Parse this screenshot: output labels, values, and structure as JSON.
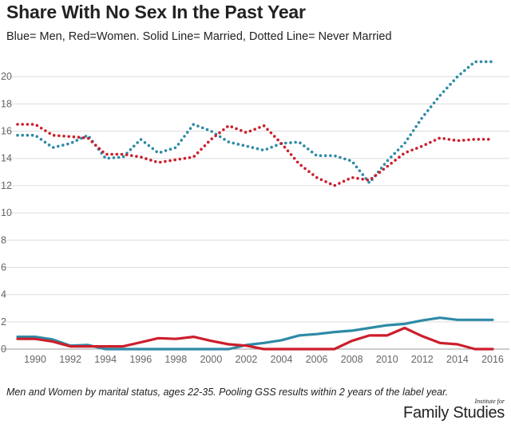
{
  "title": "Share With No Sex In the Past Year",
  "subtitle": "Blue= Men, Red=Women. Solid Line= Married, Dotted Line= Never Married",
  "note": "Men and Women by marital status, ages 22-35. Pooling GSS results within 2 years of the label year.",
  "logo": {
    "small": "Institute for",
    "big": "Family Studies"
  },
  "colors": {
    "men": "#2e8aa6",
    "women": "#cc1e2c",
    "grid": "#dddddd",
    "tick": "#666666"
  },
  "chart_data": {
    "type": "line",
    "xlim": [
      1989,
      2016.5
    ],
    "ylim": [
      0,
      22
    ],
    "x_ticks": [
      1990,
      1992,
      1994,
      1996,
      1998,
      2000,
      2002,
      2004,
      2006,
      2008,
      2010,
      2012,
      2014,
      2016
    ],
    "y_ticks": [
      0,
      2,
      4,
      6,
      8,
      10,
      12,
      14,
      16,
      18,
      20
    ],
    "grid": "horizontal",
    "legend": "none",
    "series": [
      {
        "color": "men",
        "style": "dotted",
        "points": [
          [
            1989,
            15.7
          ],
          [
            1990,
            15.7
          ],
          [
            1991,
            14.8
          ],
          [
            1992,
            15.1
          ],
          [
            1993,
            15.7
          ],
          [
            1994,
            14.0
          ],
          [
            1995,
            14.1
          ],
          [
            1996,
            15.4
          ],
          [
            1997,
            14.4
          ],
          [
            1998,
            14.8
          ],
          [
            1999,
            16.5
          ],
          [
            2000,
            16.0
          ],
          [
            2001,
            15.2
          ],
          [
            2002,
            14.9
          ],
          [
            2003,
            14.6
          ],
          [
            2004,
            15.1
          ],
          [
            2005,
            15.2
          ],
          [
            2006,
            14.2
          ],
          [
            2007,
            14.2
          ],
          [
            2008,
            13.8
          ],
          [
            2009,
            12.2
          ],
          [
            2010,
            13.8
          ],
          [
            2011,
            15.1
          ],
          [
            2012,
            17.0
          ],
          [
            2013,
            18.6
          ],
          [
            2014,
            20.0
          ],
          [
            2015,
            21.1
          ],
          [
            2016,
            21.1
          ]
        ]
      },
      {
        "color": "women",
        "style": "dotted",
        "points": [
          [
            1989,
            16.5
          ],
          [
            1990,
            16.5
          ],
          [
            1991,
            15.7
          ],
          [
            1992,
            15.6
          ],
          [
            1993,
            15.5
          ],
          [
            1994,
            14.3
          ],
          [
            1995,
            14.3
          ],
          [
            1996,
            14.1
          ],
          [
            1997,
            13.7
          ],
          [
            1998,
            13.9
          ],
          [
            1999,
            14.1
          ],
          [
            2000,
            15.4
          ],
          [
            2001,
            16.4
          ],
          [
            2002,
            15.9
          ],
          [
            2003,
            16.4
          ],
          [
            2004,
            15.1
          ],
          [
            2005,
            13.6
          ],
          [
            2006,
            12.6
          ],
          [
            2007,
            12.0
          ],
          [
            2008,
            12.6
          ],
          [
            2009,
            12.4
          ],
          [
            2010,
            13.4
          ],
          [
            2011,
            14.4
          ],
          [
            2012,
            14.9
          ],
          [
            2013,
            15.5
          ],
          [
            2014,
            15.3
          ],
          [
            2015,
            15.4
          ],
          [
            2016,
            15.4
          ]
        ]
      },
      {
        "color": "men",
        "style": "solid",
        "points": [
          [
            1989,
            0.9
          ],
          [
            1990,
            0.9
          ],
          [
            1991,
            0.7
          ],
          [
            1992,
            0.25
          ],
          [
            1993,
            0.3
          ],
          [
            1994,
            0.0
          ],
          [
            1995,
            0.0
          ],
          [
            1996,
            0.0
          ],
          [
            1997,
            0.0
          ],
          [
            1998,
            0.0
          ],
          [
            1999,
            0.0
          ],
          [
            2000,
            0.0
          ],
          [
            2001,
            0.0
          ],
          [
            2002,
            0.3
          ],
          [
            2003,
            0.45
          ],
          [
            2004,
            0.65
          ],
          [
            2005,
            1.0
          ],
          [
            2006,
            1.1
          ],
          [
            2007,
            1.25
          ],
          [
            2008,
            1.35
          ],
          [
            2009,
            1.55
          ],
          [
            2010,
            1.75
          ],
          [
            2011,
            1.85
          ],
          [
            2012,
            2.1
          ],
          [
            2013,
            2.3
          ],
          [
            2014,
            2.15
          ],
          [
            2015,
            2.15
          ],
          [
            2016,
            2.15
          ]
        ]
      },
      {
        "color": "women",
        "style": "solid",
        "points": [
          [
            1989,
            0.75
          ],
          [
            1990,
            0.75
          ],
          [
            1991,
            0.55
          ],
          [
            1992,
            0.2
          ],
          [
            1993,
            0.2
          ],
          [
            1994,
            0.2
          ],
          [
            1995,
            0.2
          ],
          [
            1996,
            0.5
          ],
          [
            1997,
            0.8
          ],
          [
            1998,
            0.75
          ],
          [
            1999,
            0.9
          ],
          [
            2000,
            0.6
          ],
          [
            2001,
            0.35
          ],
          [
            2002,
            0.25
          ],
          [
            2003,
            0.0
          ],
          [
            2004,
            0.0
          ],
          [
            2005,
            0.0
          ],
          [
            2006,
            0.0
          ],
          [
            2007,
            0.0
          ],
          [
            2008,
            0.6
          ],
          [
            2009,
            1.0
          ],
          [
            2010,
            1.0
          ],
          [
            2011,
            1.55
          ],
          [
            2012,
            0.95
          ],
          [
            2013,
            0.45
          ],
          [
            2014,
            0.35
          ],
          [
            2015,
            0.0
          ],
          [
            2016,
            0.0
          ]
        ]
      }
    ]
  }
}
